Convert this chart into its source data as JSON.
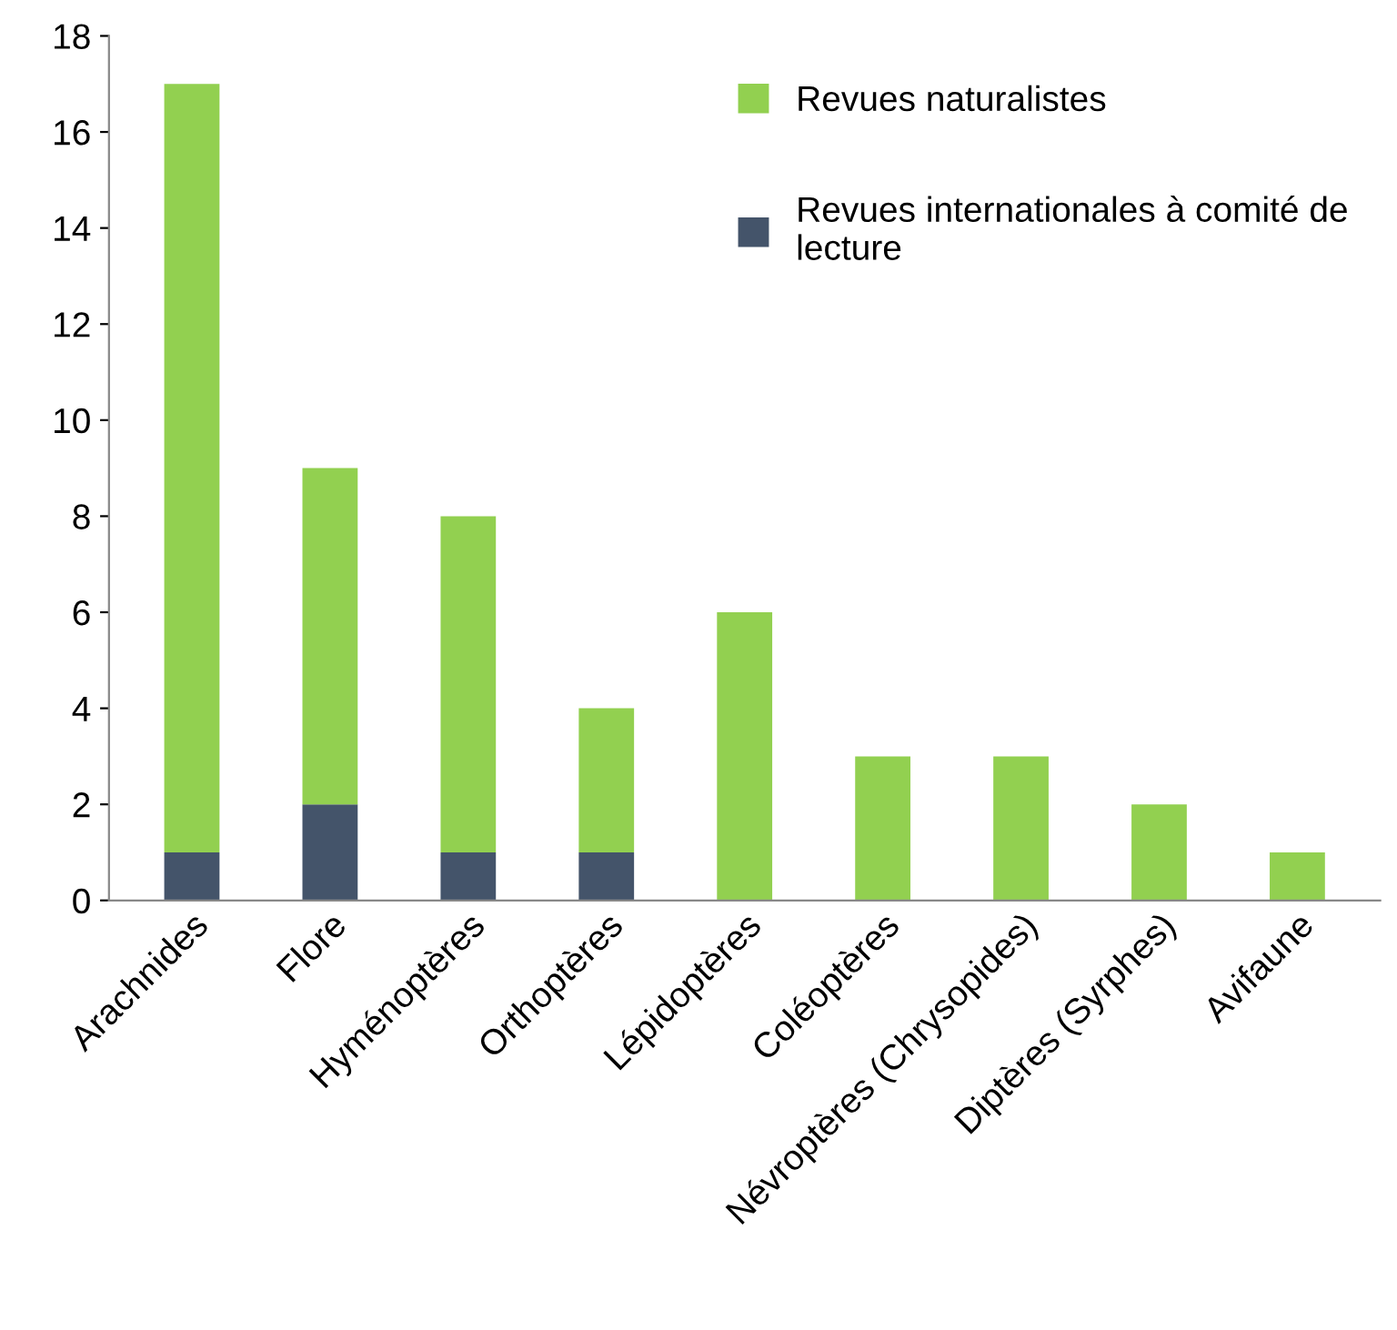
{
  "chart_data": {
    "type": "bar",
    "stacked": true,
    "categories": [
      "Arachnides",
      "Flore",
      "Hyménoptères",
      "Orthoptères",
      "Lépidoptères",
      "Coléoptères",
      "Névroptères (Chrysopides)",
      "Diptères (Syrphes)",
      "Avifaune"
    ],
    "series": [
      {
        "name": "Revues internationales à comité de lecture",
        "color": "#44546a",
        "values": [
          1,
          2,
          1,
          1,
          0,
          0,
          0,
          0,
          0
        ]
      },
      {
        "name": "Revues naturalistes",
        "color": "#92d050",
        "values": [
          16,
          7,
          7,
          3,
          6,
          3,
          3,
          2,
          1
        ]
      }
    ],
    "ylim": [
      0,
      18
    ],
    "yticks": [
      0,
      2,
      4,
      6,
      8,
      10,
      12,
      14,
      16,
      18
    ],
    "grid": false,
    "legend": "top right"
  }
}
